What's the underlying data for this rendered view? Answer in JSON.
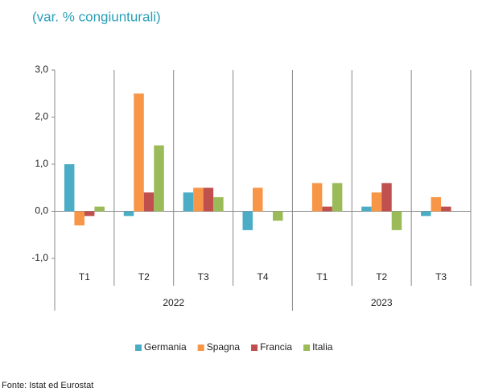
{
  "chart_data": {
    "type": "bar",
    "title": "(var. % congiunturali)",
    "source": "Fonte: Istat ed Eurostat",
    "groups": [
      {
        "name": "2022",
        "categories": [
          "T1",
          "T2",
          "T3",
          "T4"
        ]
      },
      {
        "name": "2023",
        "categories": [
          "T1",
          "T2",
          "T3"
        ]
      }
    ],
    "series": [
      {
        "name": "Germania",
        "color": "#4bacc6",
        "values": [
          1.0,
          -0.1,
          0.4,
          -0.4,
          0.0,
          0.1,
          -0.1
        ]
      },
      {
        "name": "Spagna",
        "color": "#f79646",
        "values": [
          -0.3,
          2.5,
          0.5,
          0.5,
          0.6,
          0.4,
          0.3
        ]
      },
      {
        "name": "Francia",
        "color": "#c0504d",
        "values": [
          -0.1,
          0.4,
          0.5,
          0.0,
          0.1,
          0.6,
          0.1
        ]
      },
      {
        "name": "Italia",
        "color": "#9bbb59",
        "values": [
          0.1,
          1.4,
          0.3,
          -0.2,
          0.6,
          -0.4,
          null
        ]
      }
    ],
    "ylim": [
      -1,
      3
    ],
    "yticks": [
      {
        "value": -1,
        "label": "-1,0"
      },
      {
        "value": 0,
        "label": "0,0"
      },
      {
        "value": 1,
        "label": "1,0"
      },
      {
        "value": 2,
        "label": "2,0"
      },
      {
        "value": 3,
        "label": "3,0"
      }
    ],
    "legend": "bottom"
  }
}
